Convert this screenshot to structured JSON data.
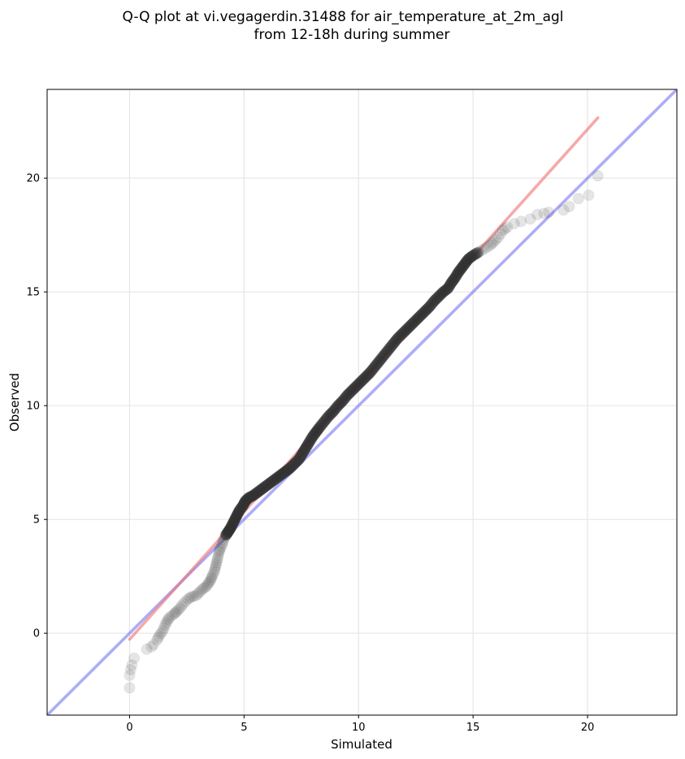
{
  "chart_data": {
    "type": "scatter",
    "title": "Q-Q plot at vi.vegagerdin.31488 for air_temperature_at_2m_agl",
    "subtitle": "from 12-18h during summer",
    "xlabel": "Simulated",
    "ylabel": "Observed",
    "xlim": [
      -3.6,
      23.9
    ],
    "ylim": [
      -3.6,
      23.9
    ],
    "xticks": [
      0,
      5,
      10,
      15,
      20
    ],
    "yticks": [
      0,
      5,
      10,
      15,
      20
    ],
    "grid": true,
    "colors": {
      "points": "#333333",
      "fit_line": "#f07070",
      "identity_line": "#6a6af0",
      "grid": "#e6e6e6"
    },
    "fit_line": {
      "x": [
        0.0,
        20.45
      ],
      "y": [
        -0.27,
        22.65
      ]
    },
    "identity_line": {
      "x": [
        -3.6,
        23.9
      ],
      "y": [
        -3.6,
        23.9
      ]
    },
    "points": [
      [
        0.0,
        -2.4
      ],
      [
        0.0,
        -1.85
      ],
      [
        0.05,
        -1.6
      ],
      [
        0.1,
        -1.4
      ],
      [
        0.2,
        -1.1
      ],
      [
        0.75,
        -0.7
      ],
      [
        0.95,
        -0.6
      ],
      [
        1.05,
        -0.5
      ],
      [
        1.2,
        -0.3
      ],
      [
        1.3,
        -0.1
      ],
      [
        1.45,
        0.1
      ],
      [
        1.55,
        0.35
      ],
      [
        1.65,
        0.55
      ],
      [
        1.75,
        0.7
      ],
      [
        1.95,
        0.85
      ],
      [
        2.05,
        0.95
      ],
      [
        2.2,
        1.1
      ],
      [
        2.35,
        1.3
      ],
      [
        2.55,
        1.5
      ],
      [
        2.7,
        1.6
      ],
      [
        2.9,
        1.65
      ],
      [
        3.05,
        1.8
      ],
      [
        3.2,
        1.95
      ],
      [
        3.35,
        2.05
      ],
      [
        3.45,
        2.2
      ],
      [
        3.55,
        2.35
      ],
      [
        3.6,
        2.5
      ],
      [
        3.7,
        2.7
      ],
      [
        3.75,
        2.9
      ],
      [
        3.8,
        3.1
      ],
      [
        3.85,
        3.3
      ],
      [
        3.9,
        3.55
      ],
      [
        3.95,
        3.7
      ],
      [
        4.05,
        3.9
      ],
      [
        4.1,
        4.1
      ],
      [
        4.2,
        4.3
      ],
      [
        4.3,
        4.45
      ],
      [
        4.4,
        4.6
      ],
      [
        4.5,
        4.8
      ],
      [
        4.6,
        5.0
      ],
      [
        4.7,
        5.2
      ],
      [
        4.8,
        5.4
      ],
      [
        4.95,
        5.6
      ],
      [
        5.05,
        5.8
      ],
      [
        5.2,
        5.95
      ],
      [
        5.4,
        6.05
      ],
      [
        5.6,
        6.2
      ],
      [
        5.8,
        6.35
      ],
      [
        6.0,
        6.5
      ],
      [
        6.2,
        6.65
      ],
      [
        6.4,
        6.8
      ],
      [
        6.6,
        6.95
      ],
      [
        6.8,
        7.1
      ],
      [
        7.0,
        7.25
      ],
      [
        7.2,
        7.45
      ],
      [
        7.4,
        7.65
      ],
      [
        7.55,
        7.9
      ],
      [
        7.7,
        8.15
      ],
      [
        7.85,
        8.4
      ],
      [
        8.0,
        8.65
      ],
      [
        8.15,
        8.85
      ],
      [
        8.3,
        9.05
      ],
      [
        8.5,
        9.3
      ],
      [
        8.7,
        9.55
      ],
      [
        8.9,
        9.75
      ],
      [
        9.1,
        10.0
      ],
      [
        9.3,
        10.2
      ],
      [
        9.5,
        10.45
      ],
      [
        9.7,
        10.65
      ],
      [
        9.9,
        10.85
      ],
      [
        10.1,
        11.05
      ],
      [
        10.3,
        11.25
      ],
      [
        10.5,
        11.45
      ],
      [
        10.7,
        11.7
      ],
      [
        10.9,
        11.95
      ],
      [
        11.1,
        12.2
      ],
      [
        11.3,
        12.45
      ],
      [
        11.5,
        12.7
      ],
      [
        11.7,
        12.95
      ],
      [
        11.9,
        13.15
      ],
      [
        12.1,
        13.35
      ],
      [
        12.3,
        13.55
      ],
      [
        12.5,
        13.75
      ],
      [
        12.7,
        13.95
      ],
      [
        12.9,
        14.15
      ],
      [
        13.1,
        14.35
      ],
      [
        13.3,
        14.6
      ],
      [
        13.5,
        14.8
      ],
      [
        13.7,
        15.0
      ],
      [
        13.9,
        15.15
      ],
      [
        14.05,
        15.4
      ],
      [
        14.2,
        15.6
      ],
      [
        14.35,
        15.85
      ],
      [
        14.5,
        16.05
      ],
      [
        14.65,
        16.25
      ],
      [
        14.8,
        16.45
      ],
      [
        15.0,
        16.6
      ],
      [
        15.25,
        16.75
      ],
      [
        15.5,
        16.9
      ],
      [
        15.75,
        17.05
      ],
      [
        15.9,
        17.2
      ],
      [
        16.1,
        17.4
      ],
      [
        16.3,
        17.7
      ],
      [
        16.5,
        17.85
      ],
      [
        16.8,
        18.0
      ],
      [
        17.1,
        18.1
      ],
      [
        17.5,
        18.2
      ],
      [
        17.8,
        18.4
      ],
      [
        18.1,
        18.45
      ],
      [
        18.3,
        18.5
      ],
      [
        18.95,
        18.6
      ],
      [
        19.2,
        18.75
      ],
      [
        19.6,
        19.1
      ],
      [
        20.05,
        19.25
      ],
      [
        20.45,
        20.1
      ]
    ]
  }
}
